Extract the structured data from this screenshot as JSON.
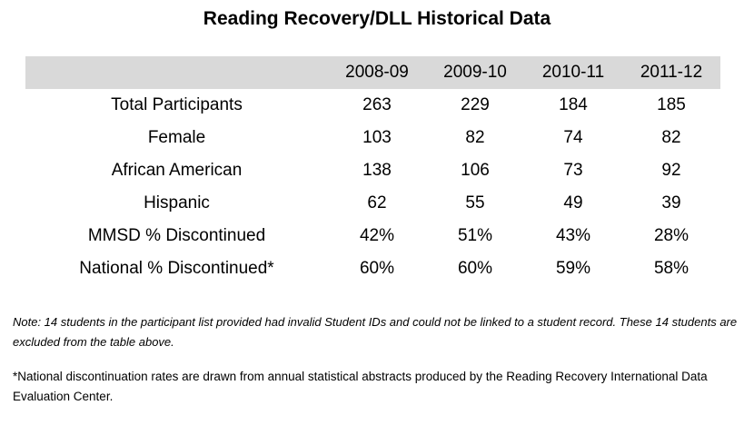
{
  "title": "Reading Recovery/DLL Historical Data",
  "table": {
    "header": [
      "",
      "2008-09",
      "2009-10",
      "2010-11",
      "2011-12"
    ],
    "rows": [
      {
        "label": "Total Participants",
        "values": [
          "263",
          "229",
          "184",
          "185"
        ]
      },
      {
        "label": "Female",
        "values": [
          "103",
          "82",
          "74",
          "82"
        ]
      },
      {
        "label": "African American",
        "values": [
          "138",
          "106",
          "73",
          "92"
        ]
      },
      {
        "label": "Hispanic",
        "values": [
          "62",
          "55",
          "49",
          "39"
        ]
      },
      {
        "label": "MMSD % Discontinued",
        "values": [
          "42%",
          "51%",
          "43%",
          "28%"
        ]
      },
      {
        "label": "National % Discontinued*",
        "values": [
          "60%",
          "60%",
          "59%",
          "58%"
        ]
      }
    ]
  },
  "note": "Note: 14 students in the participant list provided had invalid Student IDs and could not be linked to a student record. These 14 students are excluded from the table above.",
  "footnote": "*National discontinuation rates are drawn from annual statistical abstracts produced by the Reading Recovery International Data Evaluation Center.",
  "colors": {
    "header_band": "#d9d9d9",
    "text": "#000000",
    "background": "#ffffff"
  }
}
